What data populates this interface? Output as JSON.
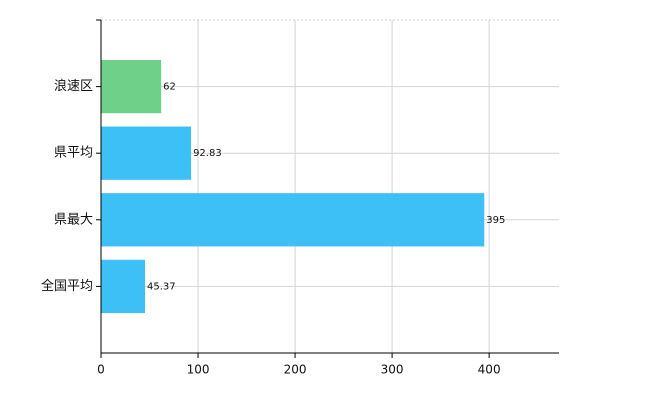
{
  "chart_data": {
    "type": "hbar",
    "categories": [
      "浪速区",
      "県平均",
      "県最大",
      "全国平均"
    ],
    "values": [
      62,
      92.83,
      395,
      45.37
    ],
    "colors": [
      "#6fd08a",
      "#3cc0f5",
      "#3cc0f5",
      "#3cc0f5"
    ],
    "xlim": [
      0,
      472
    ],
    "xticks": [
      0,
      100,
      200,
      300,
      400
    ],
    "grid": true
  }
}
